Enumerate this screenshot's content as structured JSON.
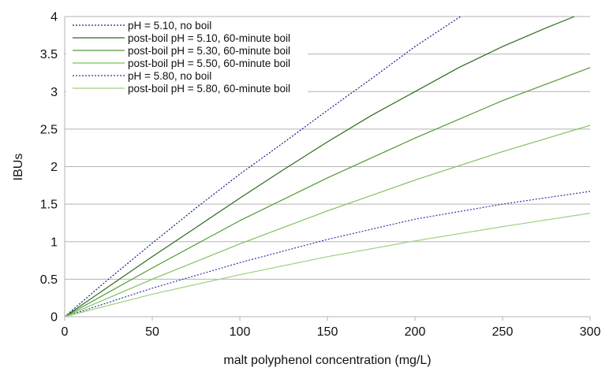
{
  "chart_data": {
    "type": "line",
    "title": "",
    "xlabel": "malt polyphenol concentration (mg/L)",
    "ylabel": "IBUs",
    "xlim": [
      0,
      300
    ],
    "ylim": [
      0,
      4
    ],
    "xticks": [
      0,
      50,
      100,
      150,
      200,
      250,
      300
    ],
    "yticks": [
      0,
      0.5,
      1,
      1.5,
      2,
      2.5,
      3,
      3.5,
      4
    ],
    "grid": "horizontal",
    "legend_position": "top-left",
    "series": [
      {
        "name": "pH = 5.10, no boil",
        "color": "#1a1a8c",
        "dash": "dotted",
        "points": [
          [
            0,
            0
          ],
          [
            25,
            0.5
          ],
          [
            50,
            0.98
          ],
          [
            75,
            1.45
          ],
          [
            100,
            1.9
          ],
          [
            125,
            2.32
          ],
          [
            150,
            2.75
          ],
          [
            175,
            3.17
          ],
          [
            200,
            3.6
          ],
          [
            226,
            4.0
          ]
        ]
      },
      {
        "name": "post-boil pH = 5.10, 60-minute boil",
        "color": "#2e6b1e",
        "dash": "solid",
        "points": [
          [
            0,
            0
          ],
          [
            25,
            0.4
          ],
          [
            50,
            0.8
          ],
          [
            75,
            1.19
          ],
          [
            100,
            1.58
          ],
          [
            125,
            1.96
          ],
          [
            150,
            2.33
          ],
          [
            175,
            2.68
          ],
          [
            200,
            3.0
          ],
          [
            225,
            3.32
          ],
          [
            250,
            3.6
          ],
          [
            275,
            3.85
          ],
          [
            291,
            4.0
          ]
        ]
      },
      {
        "name": "post-boil pH = 5.30, 60-minute boil",
        "color": "#4f9a34",
        "dash": "solid",
        "points": [
          [
            0,
            0
          ],
          [
            50,
            0.65
          ],
          [
            100,
            1.28
          ],
          [
            150,
            1.85
          ],
          [
            200,
            2.38
          ],
          [
            250,
            2.88
          ],
          [
            300,
            3.32
          ]
        ]
      },
      {
        "name": "post-boil pH = 5.50, 60-minute boil",
        "color": "#7dc25e",
        "dash": "solid",
        "points": [
          [
            0,
            0
          ],
          [
            50,
            0.5
          ],
          [
            100,
            0.97
          ],
          [
            150,
            1.41
          ],
          [
            200,
            1.82
          ],
          [
            250,
            2.2
          ],
          [
            300,
            2.55
          ]
        ]
      },
      {
        "name": "pH = 5.80, no boil",
        "color": "#3333aa",
        "dash": "dotted",
        "points": [
          [
            0,
            0
          ],
          [
            50,
            0.38
          ],
          [
            100,
            0.72
          ],
          [
            150,
            1.03
          ],
          [
            200,
            1.3
          ],
          [
            250,
            1.5
          ],
          [
            300,
            1.67
          ]
        ]
      },
      {
        "name": "post-boil pH = 5.80, 60-minute boil",
        "color": "#9ed07e",
        "dash": "solid",
        "points": [
          [
            0,
            0
          ],
          [
            50,
            0.3
          ],
          [
            100,
            0.56
          ],
          [
            150,
            0.8
          ],
          [
            200,
            1.01
          ],
          [
            250,
            1.2
          ],
          [
            300,
            1.38
          ]
        ]
      }
    ]
  }
}
